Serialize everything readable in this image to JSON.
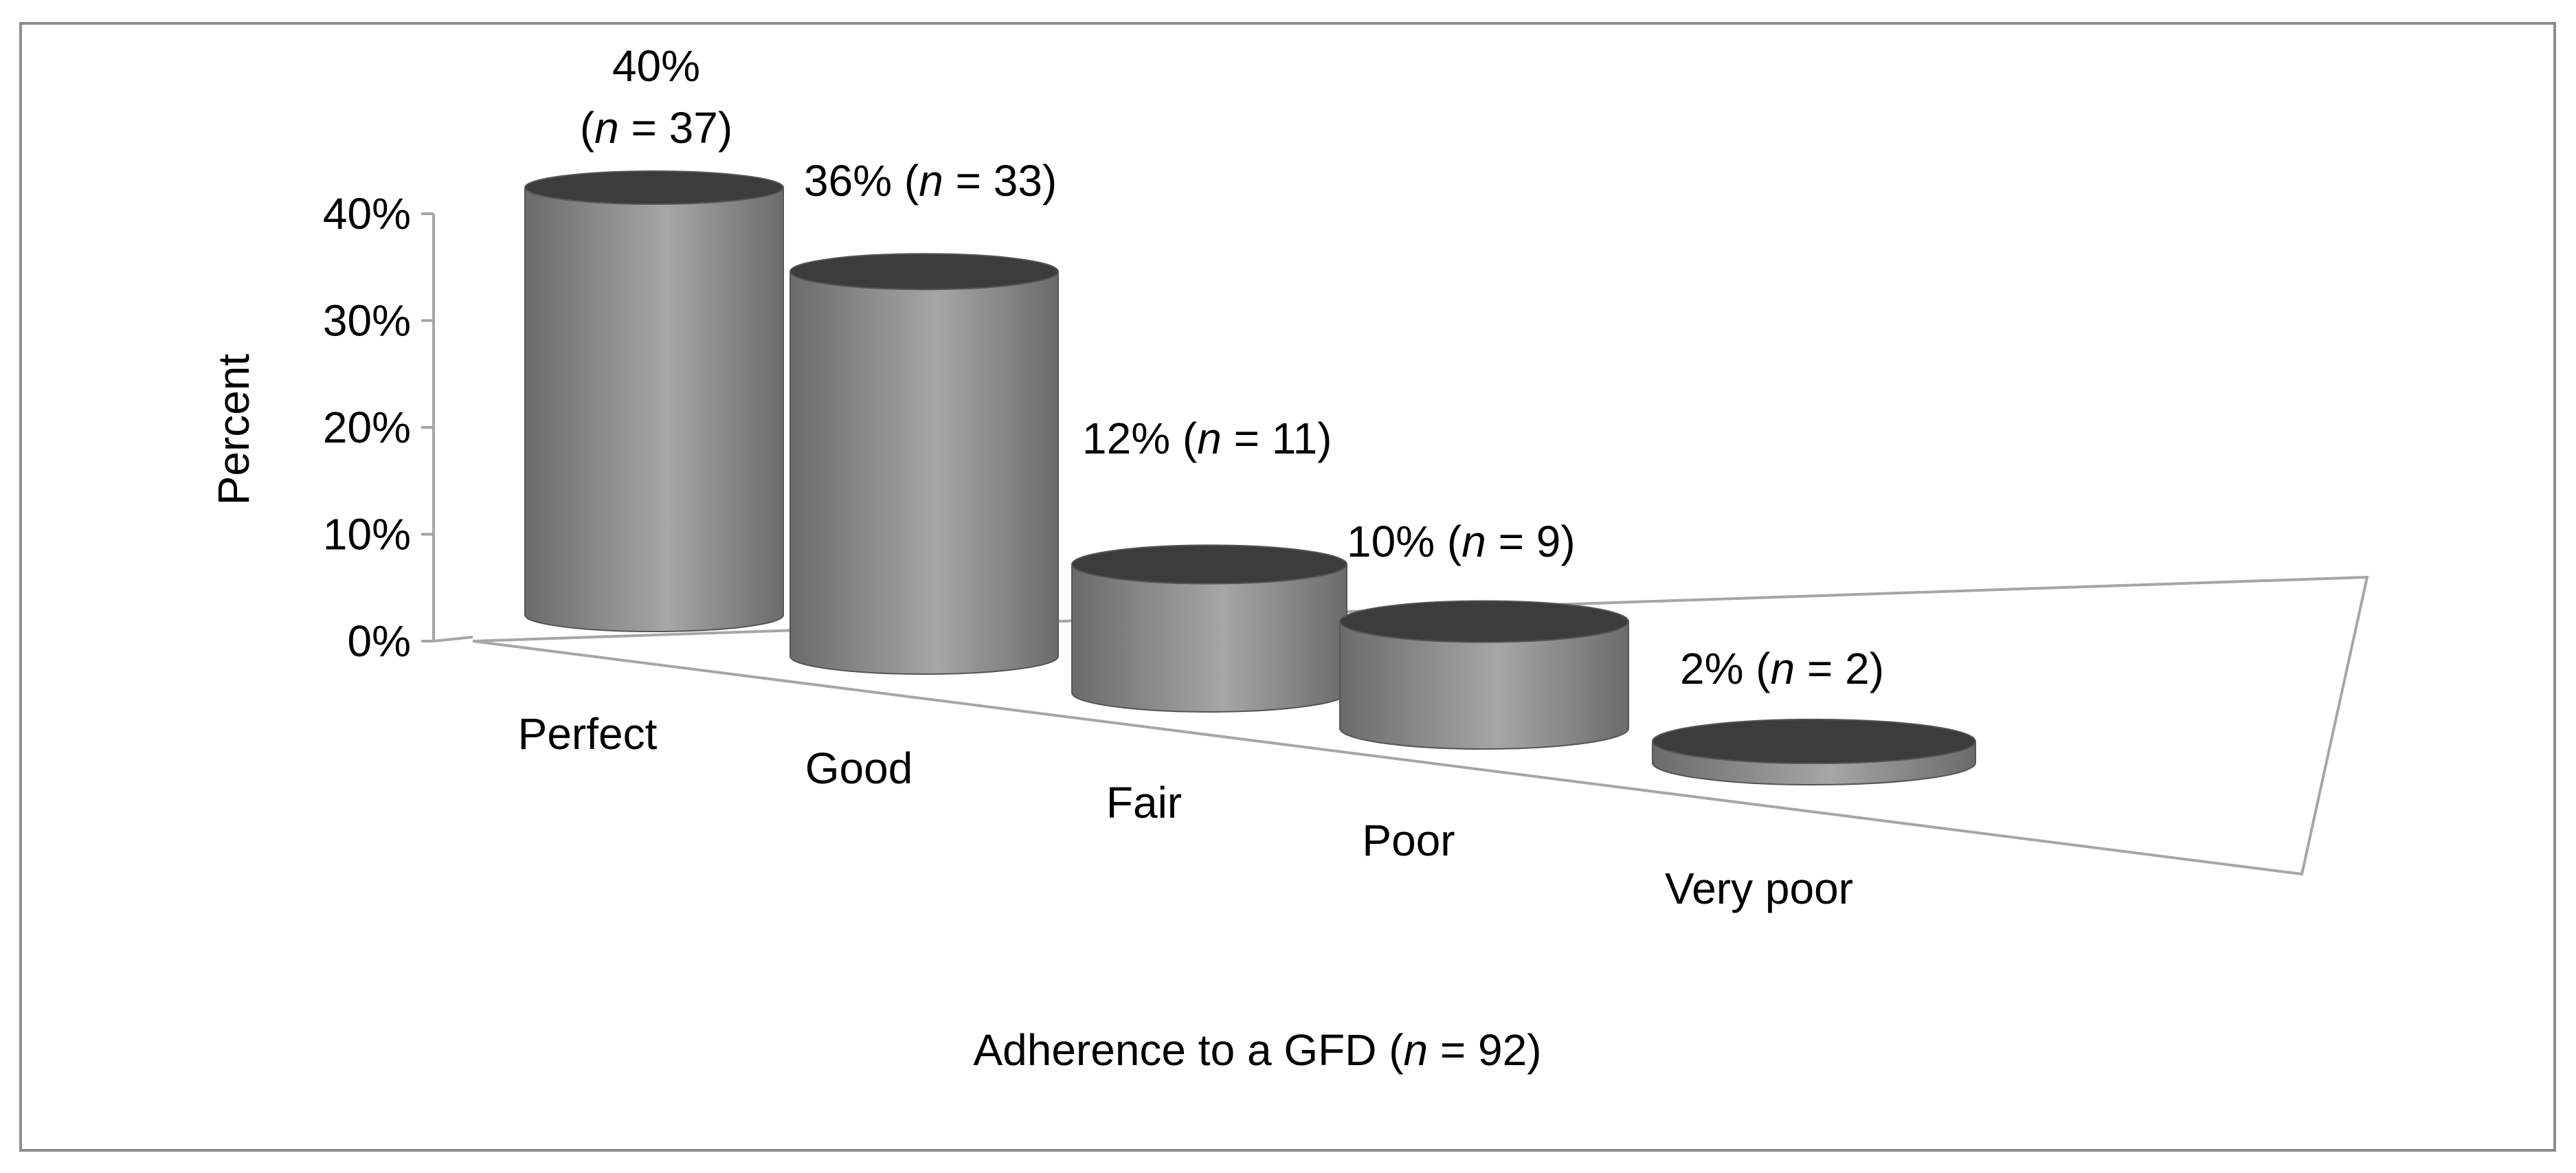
{
  "chart_data": {
    "type": "bar",
    "style": "3d-cylinder",
    "categories": [
      "Perfect",
      "Good",
      "Fair",
      "Poor",
      "Very poor"
    ],
    "values": [
      40,
      36,
      12,
      10,
      2
    ],
    "data_labels": [
      [
        "40%",
        "n = 37"
      ],
      [
        "36%",
        "n = 33"
      ],
      [
        "12%",
        "n = 11"
      ],
      [
        "10%",
        "n = 9"
      ],
      [
        "2%",
        "n = 2"
      ]
    ],
    "ylabel": "Percent",
    "xlabel": "Adherence to a GFD",
    "xlabel_n": "n = 92",
    "ylim": [
      0,
      40
    ],
    "yticks": [
      "0%",
      "10%",
      "20%",
      "30%",
      "40%"
    ],
    "grid": false,
    "legend": "none",
    "colors": {
      "bar": "#6b6b6b",
      "bar_highlight": "#a6a6a6",
      "bar_top": "#3c3c3c",
      "axis": "#a6a6a6"
    }
  }
}
